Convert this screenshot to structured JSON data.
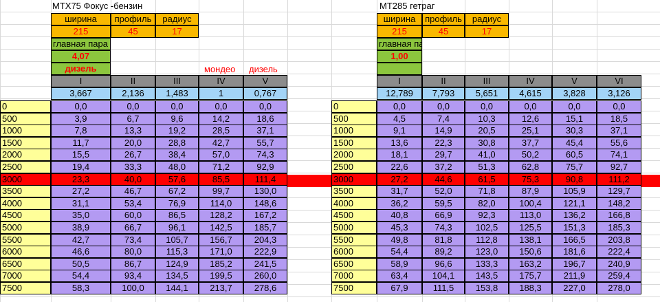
{
  "left": {
    "title": "МТХ75 Фокус -бензин",
    "headers": [
      "ширина",
      "профиль",
      "радиус"
    ],
    "tire": [
      "215",
      "45",
      "17"
    ],
    "final_drive_label": "главная пара",
    "final_drive": "4,07",
    "fuel_note": "дизель",
    "extra_labels": [
      "мондео",
      "дизель"
    ],
    "gears": [
      "I",
      "II",
      "III",
      "IV",
      "V"
    ],
    "ratios": [
      "3,667",
      "2,136",
      "1,483",
      "1",
      "0,767"
    ],
    "rpm": [
      "0",
      "500",
      "1000",
      "1500",
      "2000",
      "2500",
      "3000",
      "3500",
      "4000",
      "4500",
      "5000",
      "5500",
      "6000",
      "6500",
      "7000",
      "7500"
    ],
    "rows": [
      [
        "0,0",
        "0,0",
        "0,0",
        "0,0",
        "0,0"
      ],
      [
        "3,9",
        "6,7",
        "9,6",
        "14,2",
        "18,6"
      ],
      [
        "7,8",
        "13,3",
        "19,2",
        "28,5",
        "37,1"
      ],
      [
        "11,7",
        "20,0",
        "28,8",
        "42,7",
        "55,7"
      ],
      [
        "15,5",
        "26,7",
        "38,4",
        "57,0",
        "74,3"
      ],
      [
        "19,4",
        "33,3",
        "48,0",
        "71,2",
        "92,9"
      ],
      [
        "23,3",
        "40,0",
        "57,6",
        "85,5",
        "111,4"
      ],
      [
        "27,2",
        "46,7",
        "67,2",
        "99,7",
        "130,0"
      ],
      [
        "31,1",
        "53,4",
        "76,9",
        "114,0",
        "148,6"
      ],
      [
        "35,0",
        "60,0",
        "86,5",
        "128,2",
        "167,2"
      ],
      [
        "38,9",
        "66,7",
        "96,1",
        "142,5",
        "185,7"
      ],
      [
        "42,7",
        "73,4",
        "105,7",
        "156,7",
        "204,3"
      ],
      [
        "46,6",
        "80,0",
        "115,3",
        "171,0",
        "222,9"
      ],
      [
        "50,5",
        "86,7",
        "124,9",
        "185,2",
        "241,5"
      ],
      [
        "54,4",
        "93,4",
        "134,5",
        "199,5",
        "260,0"
      ],
      [
        "58,3",
        "100,0",
        "144,1",
        "213,7",
        "278,6"
      ]
    ]
  },
  "right": {
    "title": "МТ285 гетраг",
    "headers": [
      "ширина",
      "профиль",
      "радиус"
    ],
    "tire": [
      "215",
      "45",
      "17"
    ],
    "final_drive_label": "главная пара",
    "final_drive": "1,00",
    "gears": [
      "I",
      "II",
      "III",
      "IV",
      "V",
      "VI"
    ],
    "ratios": [
      "12,789",
      "7,793",
      "5,651",
      "4,615",
      "3,828",
      "3,126"
    ],
    "rpm": [
      "0",
      "500",
      "1000",
      "1500",
      "2000",
      "2500",
      "3000",
      "3500",
      "4000",
      "4500",
      "5000",
      "5500",
      "6000",
      "6500",
      "7000",
      "7500"
    ],
    "rows": [
      [
        "0,0",
        "0,0",
        "0,0",
        "0,0",
        "0,0",
        "0,0"
      ],
      [
        "4,5",
        "7,4",
        "10,3",
        "12,6",
        "15,1",
        "18,5"
      ],
      [
        "9,1",
        "14,9",
        "20,5",
        "25,1",
        "30,3",
        "37,1"
      ],
      [
        "13,6",
        "22,3",
        "30,8",
        "37,7",
        "45,4",
        "55,6"
      ],
      [
        "18,1",
        "29,7",
        "41,0",
        "50,2",
        "60,5",
        "74,1"
      ],
      [
        "22,6",
        "37,2",
        "51,3",
        "62,8",
        "75,7",
        "92,7"
      ],
      [
        "27,2",
        "44,6",
        "61,5",
        "75,3",
        "90,8",
        "111,2"
      ],
      [
        "31,7",
        "52,0",
        "71,8",
        "87,9",
        "105,9",
        "129,7"
      ],
      [
        "36,2",
        "59,5",
        "82,0",
        "100,4",
        "121,1",
        "148,2"
      ],
      [
        "40,8",
        "66,9",
        "92,3",
        "113,0",
        "136,2",
        "166,8"
      ],
      [
        "45,3",
        "74,3",
        "102,5",
        "125,5",
        "151,3",
        "185,3"
      ],
      [
        "49,8",
        "81,8",
        "112,8",
        "138,1",
        "166,5",
        "203,8"
      ],
      [
        "54,4",
        "89,2",
        "123,0",
        "150,6",
        "181,6",
        "222,4"
      ],
      [
        "58,9",
        "96,6",
        "133,3",
        "163,2",
        "196,7",
        "240,9"
      ],
      [
        "63,4",
        "104,1",
        "143,5",
        "175,7",
        "211,9",
        "259,4"
      ],
      [
        "67,9",
        "111,5",
        "153,8",
        "188,3",
        "227,0",
        "278,0"
      ]
    ]
  },
  "colors": {
    "header": "#f9b800",
    "final_drive": "#8cc63e",
    "gear_row": "#8c8c8c",
    "ratio_row": "#a3d4f7",
    "data": "#b39af2",
    "rpm": "#ffff99",
    "highlight_row": "#ff0000"
  }
}
